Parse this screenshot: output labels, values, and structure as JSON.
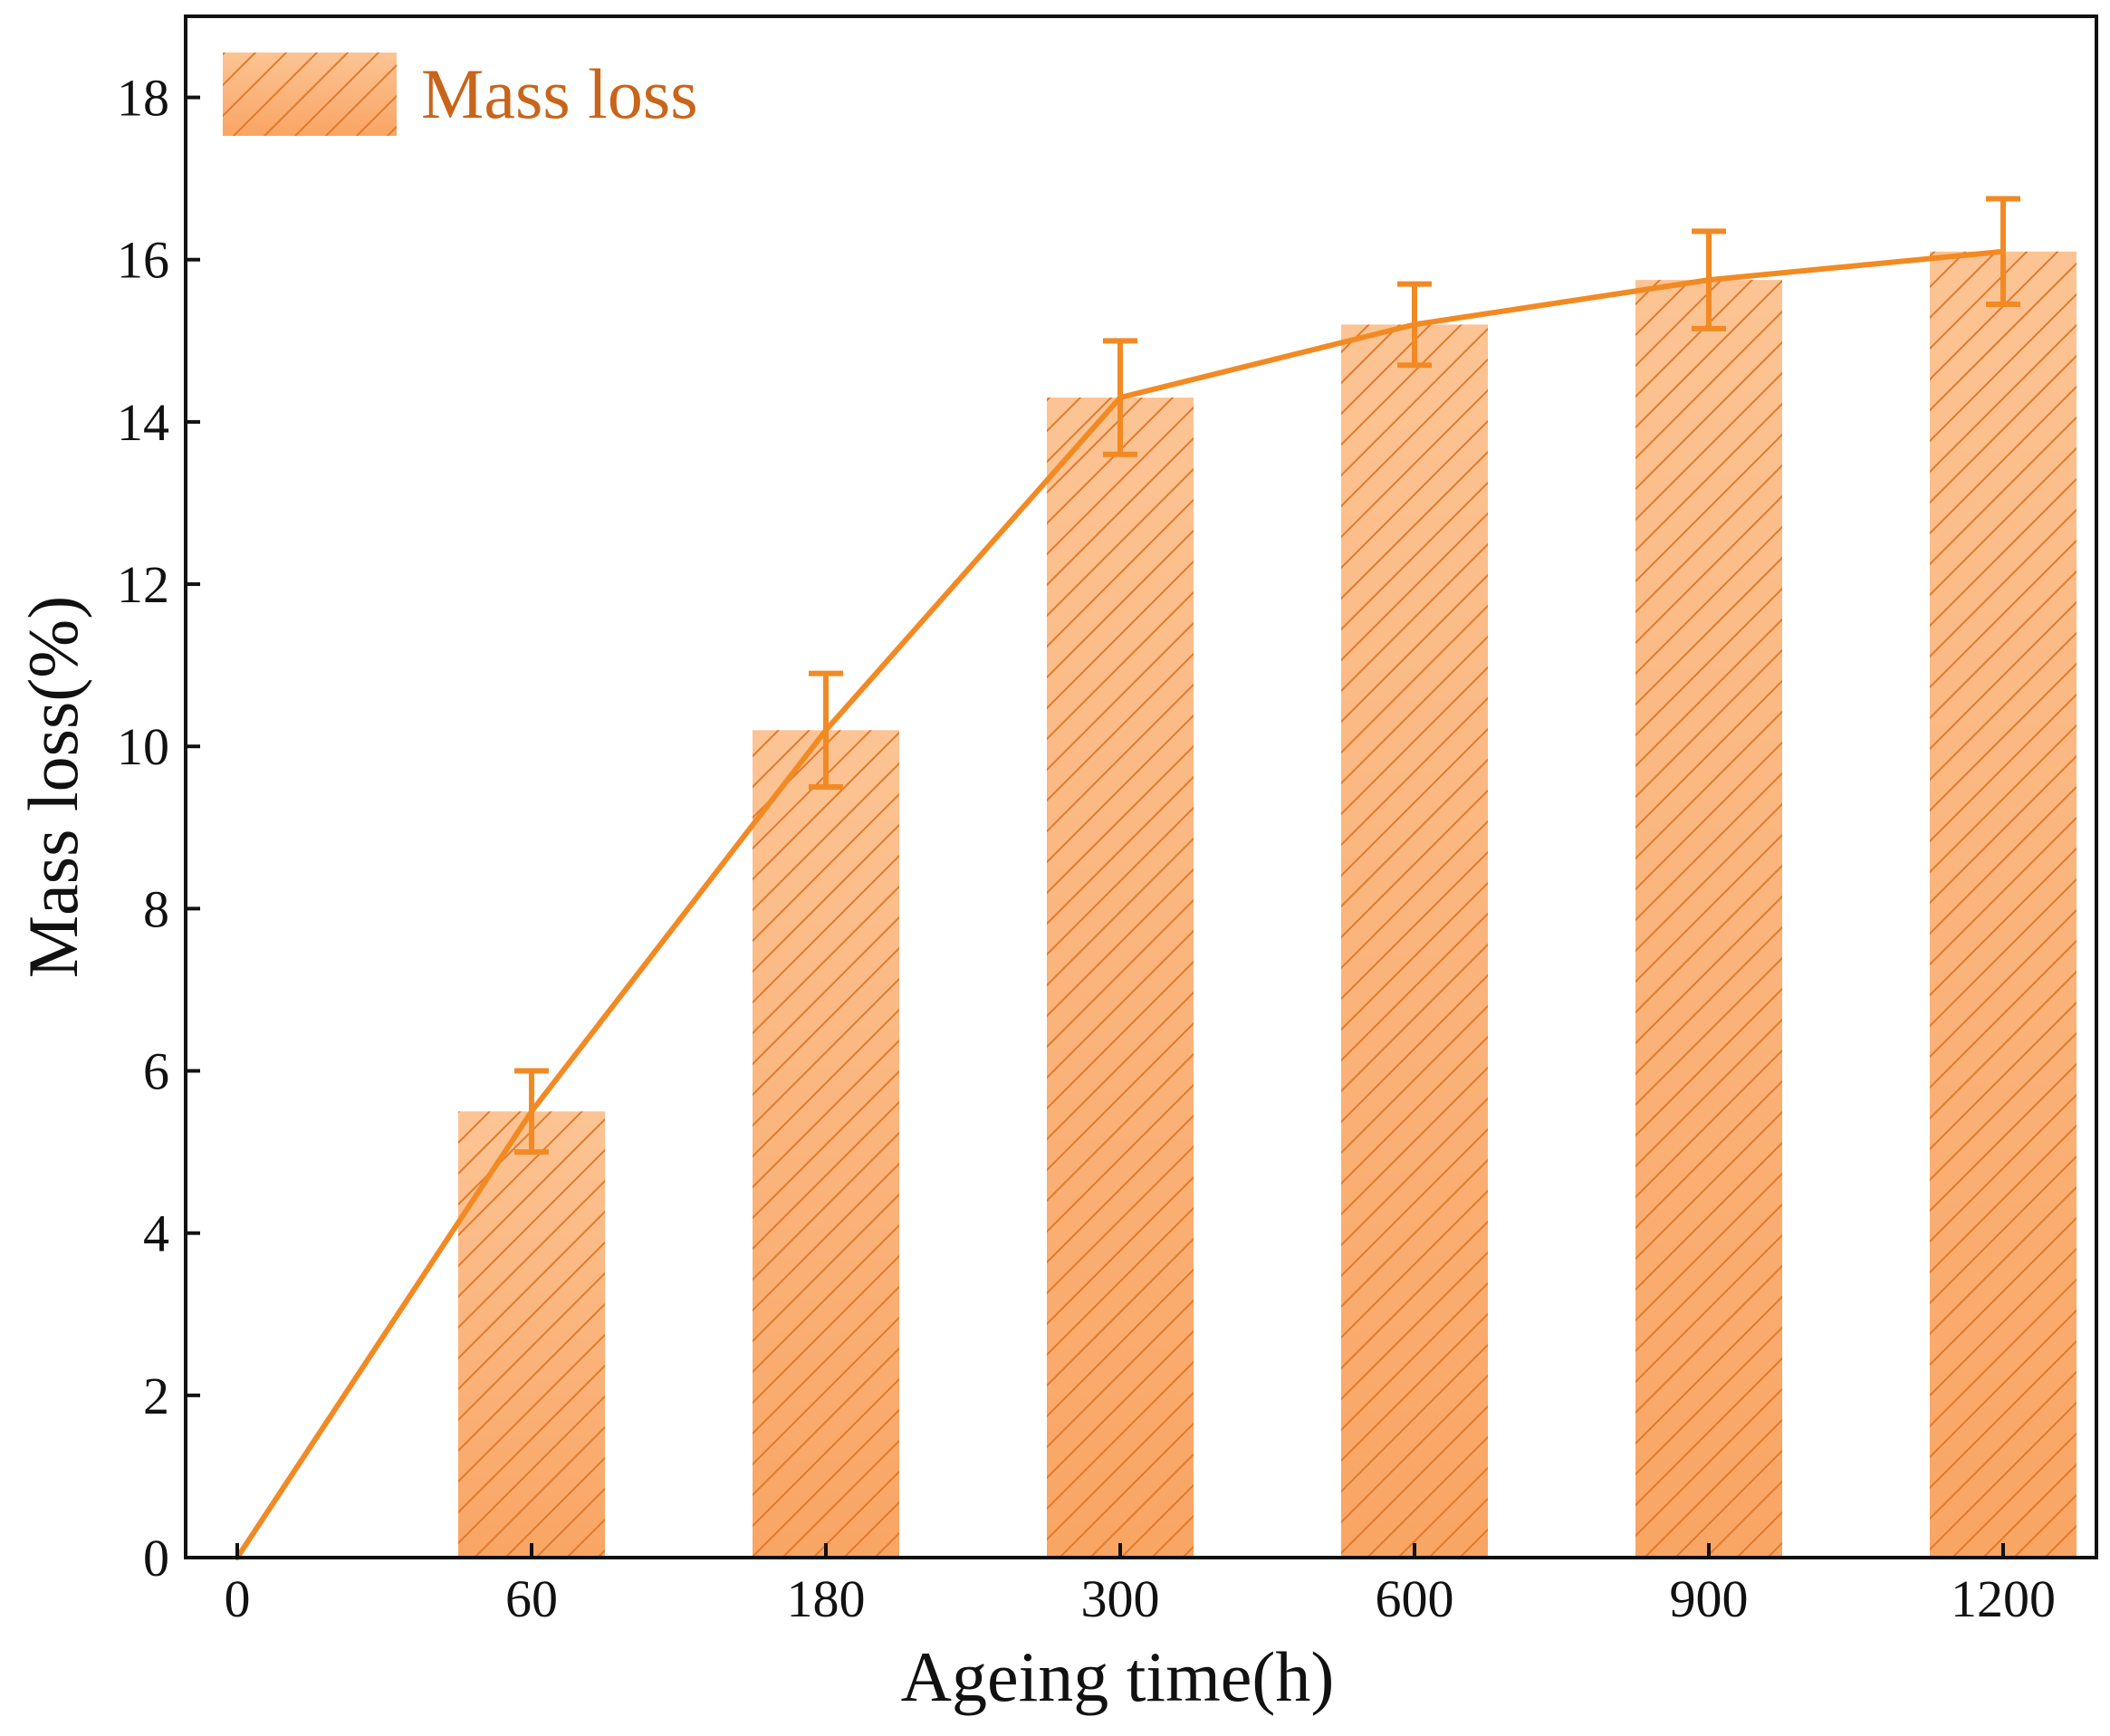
{
  "chart_data": {
    "type": "bar",
    "title": "",
    "xlabel": "Ageing time(h)",
    "ylabel": "Mass loss(%)",
    "x_ticks": [
      "0",
      "60",
      "180",
      "300",
      "600",
      "900",
      "1200"
    ],
    "categories": [
      "60",
      "180",
      "300",
      "600",
      "900",
      "1200"
    ],
    "ylim": [
      0,
      19
    ],
    "y_ticks": [
      0,
      2,
      4,
      6,
      8,
      10,
      12,
      14,
      16,
      18
    ],
    "series": [
      {
        "name": "Mass loss",
        "values": [
          5.5,
          10.2,
          14.3,
          15.2,
          15.75,
          16.1
        ],
        "error": [
          0.5,
          0.7,
          0.7,
          0.5,
          0.6,
          0.65
        ]
      }
    ],
    "line": {
      "x_categories": [
        "0",
        "60",
        "180",
        "300",
        "600",
        "900",
        "1200"
      ],
      "values": [
        0,
        5.5,
        10.2,
        14.3,
        15.2,
        15.75,
        16.1
      ]
    },
    "legend": {
      "position": "top-left",
      "label": "Mass loss"
    },
    "grid": false,
    "colors": {
      "bar_fill": "#f9a564",
      "bar_fill_light": "#fcc494",
      "hatch": "#e07a2c",
      "line": "#f28a24",
      "legend_text": "#c8651a",
      "axis": "#111111"
    }
  }
}
